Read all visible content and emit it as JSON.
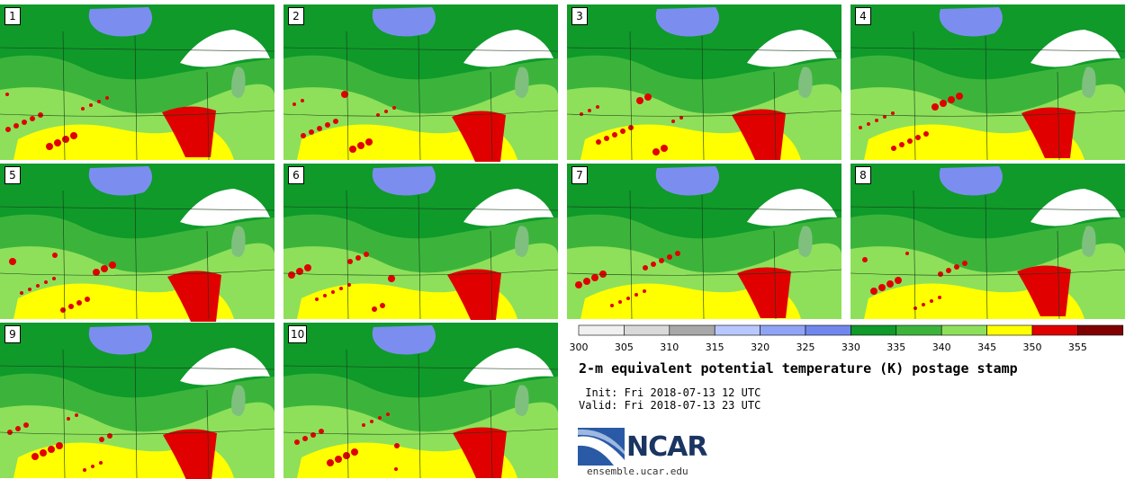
{
  "panels": [
    {
      "label": "1"
    },
    {
      "label": "2"
    },
    {
      "label": "3"
    },
    {
      "label": "4"
    },
    {
      "label": "5"
    },
    {
      "label": "6"
    },
    {
      "label": "7"
    },
    {
      "label": "8"
    },
    {
      "label": "9"
    },
    {
      "label": "10"
    }
  ],
  "colorbar": {
    "ticks": [
      "300",
      "305",
      "310",
      "315",
      "320",
      "325",
      "330",
      "335",
      "340",
      "345",
      "350",
      "355"
    ],
    "colors": [
      "#f0f0f0",
      "#d9d9d9",
      "#a8a8a8",
      "#b8c8ff",
      "#8fa4f5",
      "#7088ee",
      "#0f9a2a",
      "#3cb43c",
      "#8ee05a",
      "#ffff00",
      "#e00000",
      "#800000"
    ]
  },
  "map_colors": {
    "dark_green": "#0f9a2a",
    "green": "#3cb43c",
    "light_green": "#8ee05a",
    "yellow": "#ffff00",
    "red": "#e00000",
    "blue": "#7b8ef0",
    "lake": "#ffffff"
  },
  "title": "2-m equivalent potential temperature (K) postage stamp",
  "init": " Init: Fri 2018-07-13 12 UTC",
  "valid": "Valid: Fri 2018-07-13 23 UTC",
  "logo": {
    "name": "NCAR",
    "url": "ensemble.ucar.edu"
  }
}
